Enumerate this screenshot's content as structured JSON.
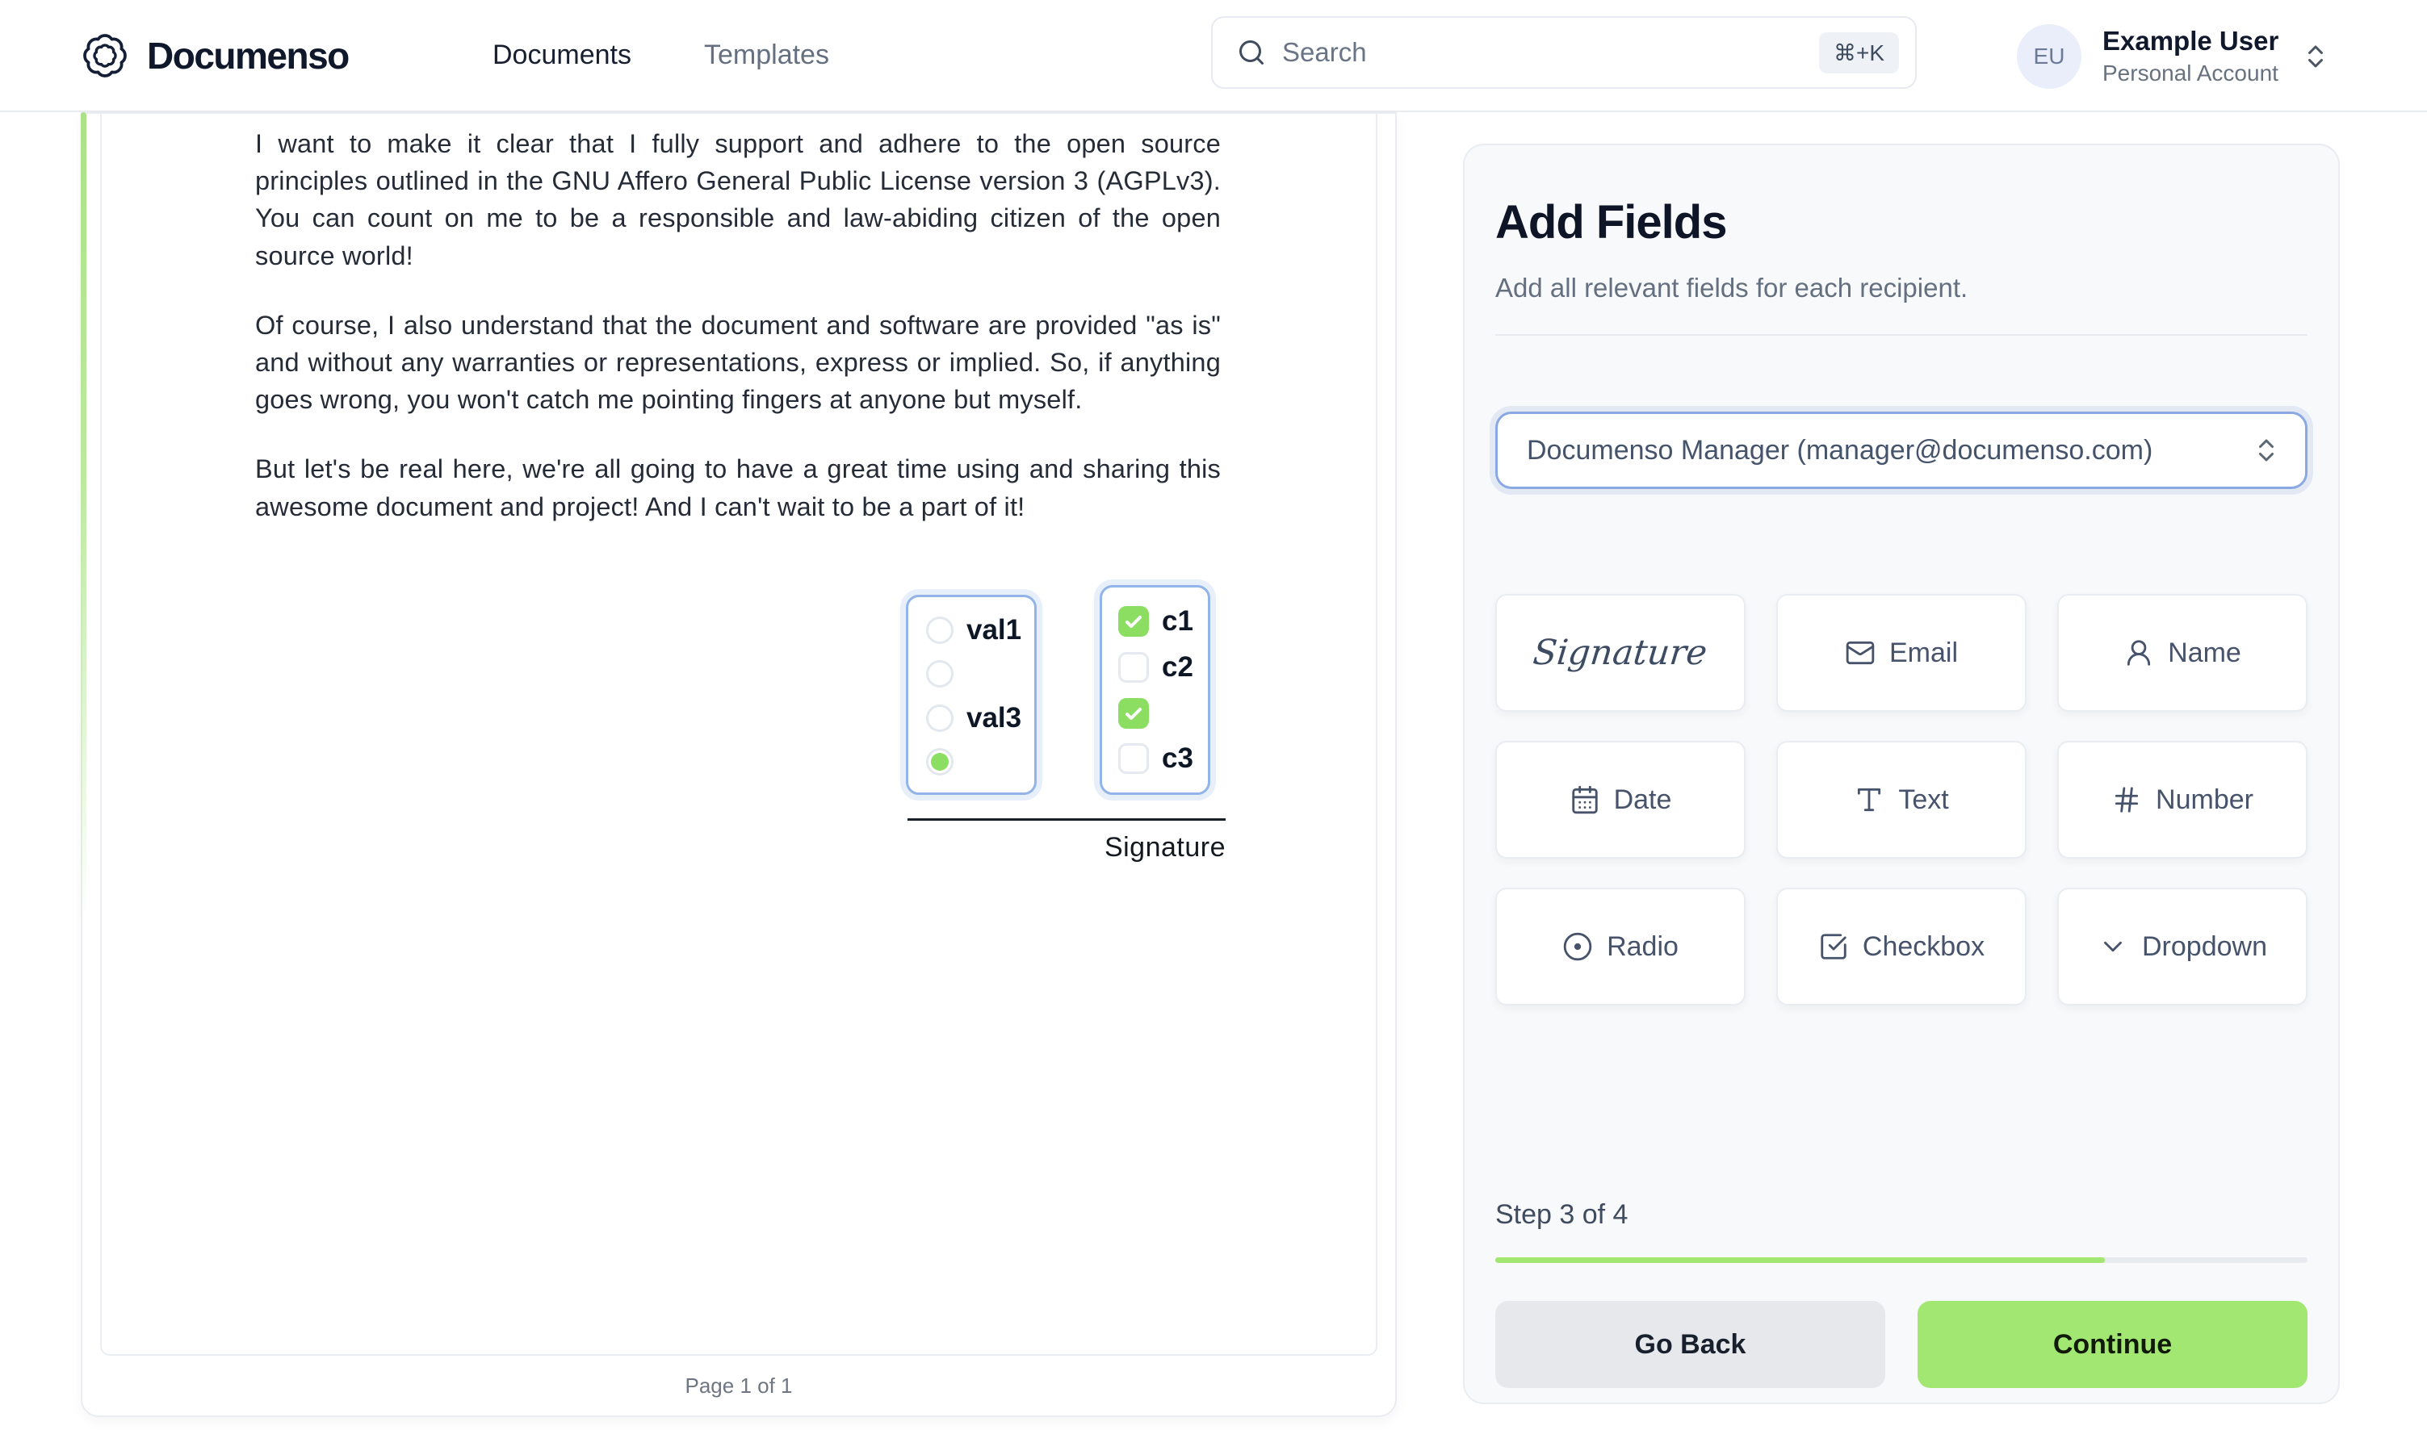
{
  "navbar": {
    "brand": "Documenso",
    "links": [
      {
        "label": "Documents",
        "active": true
      },
      {
        "label": "Templates",
        "active": false
      }
    ],
    "search": {
      "placeholder": "Search",
      "shortcut": "⌘+K"
    },
    "user": {
      "initials": "EU",
      "name": "Example User",
      "account_type": "Personal Account"
    }
  },
  "document": {
    "paragraphs": [
      "I want to make it clear that I fully support and adhere to the open source principles outlined in the GNU Affero General Public License version 3 (AGPLv3). You can count on me to be a responsible and law-abiding citizen of the open source world!",
      "Of course, I also understand that the document and software are provided \"as is\" and without any warranties or representations, express or implied. So, if anything goes wrong, you won't catch me pointing fingers at anyone but myself.",
      "But let's be real here, we're all going to have a great time using and sharing this awesome document and project! And I can't wait to be a part of it!"
    ],
    "radio_group": {
      "options": [
        {
          "label": "val1",
          "checked": false
        },
        {
          "label": "",
          "checked": false
        },
        {
          "label": "val3",
          "checked": false
        },
        {
          "label": "",
          "checked": true
        }
      ]
    },
    "checkbox_group": {
      "options": [
        {
          "label": "c1",
          "checked": true
        },
        {
          "label": "c2",
          "checked": false
        },
        {
          "label": "",
          "checked": true
        },
        {
          "label": "c3",
          "checked": false
        }
      ]
    },
    "signature_label": "Signature",
    "pagination": "Page 1 of 1"
  },
  "panel": {
    "title": "Add Fields",
    "subtitle": "Add all relevant fields for each recipient.",
    "recipient": "Documenso Manager (manager@documenso.com)",
    "fields": [
      {
        "label": "Signature",
        "icon": "signature-script"
      },
      {
        "label": "Email",
        "icon": "mail-icon"
      },
      {
        "label": "Name",
        "icon": "user-icon"
      },
      {
        "label": "Date",
        "icon": "calendar-icon"
      },
      {
        "label": "Text",
        "icon": "type-icon"
      },
      {
        "label": "Number",
        "icon": "hash-icon"
      },
      {
        "label": "Radio",
        "icon": "radio-icon"
      },
      {
        "label": "Checkbox",
        "icon": "checkbox-icon"
      },
      {
        "label": "Dropdown",
        "icon": "chevron-down-icon"
      }
    ],
    "step": {
      "label": "Step 3 of 4",
      "progress_percent": 75
    },
    "go_back_label": "Go Back",
    "continue_label": "Continue"
  },
  "colors": {
    "primary_green": "#A2E771",
    "check_green": "#8BDE61",
    "focus_blue": "#8AA9E3",
    "widget_blue": "#92B4E9",
    "text_dark": "#111827",
    "text_muted": "#64748B"
  }
}
